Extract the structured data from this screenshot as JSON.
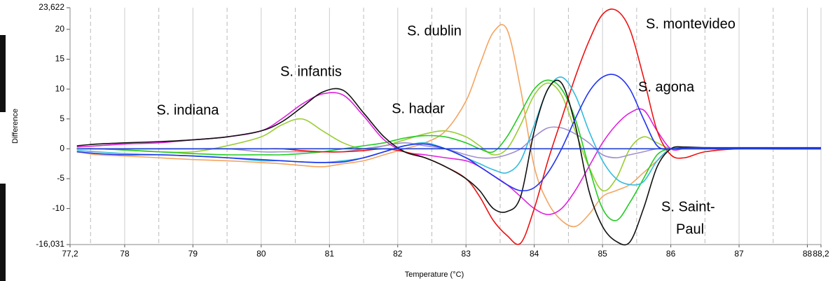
{
  "chart_data": {
    "type": "line",
    "xlabel": "Temperature (°C)",
    "ylabel": "Difference",
    "xlim": [
      77.2,
      88.2
    ],
    "ylim": [
      -16.031,
      23.622
    ],
    "xticks": [
      {
        "value": 77.2,
        "label": "77,2"
      },
      78,
      79,
      80,
      81,
      82,
      83,
      84,
      85,
      86,
      87,
      88,
      {
        "value": 88.2,
        "label": "88,2"
      }
    ],
    "yticks": [
      {
        "value": 23.622,
        "label": "23,622"
      },
      20,
      15,
      10,
      5,
      0,
      -5,
      -10,
      {
        "value": -16.031,
        "label": "-16,031"
      }
    ],
    "minor_xgrid": [
      77.5,
      78.5,
      79.5,
      80.5,
      81.5,
      82.5,
      83.5,
      84.5,
      85.5,
      86.5,
      87.5
    ],
    "grid": true,
    "annotations": [
      "S. indiana",
      "S. infantis",
      "S. dublin",
      "S. hadar",
      "S. montevideo",
      "S. agona",
      "S. Saint-",
      "Paul"
    ],
    "x": [
      77.3,
      77.6,
      78,
      78.5,
      79,
      79.5,
      80,
      80.3,
      80.6,
      80.9,
      81.2,
      81.5,
      81.8,
      82.1,
      82.4,
      82.7,
      83,
      83.2,
      83.4,
      83.6,
      83.8,
      84,
      84.2,
      84.4,
      84.6,
      84.8,
      85,
      85.2,
      85.4,
      85.6,
      85.8,
      86,
      86.2,
      86.5,
      87,
      87.5,
      88,
      88.2
    ],
    "series": [
      {
        "color": "#9acd32",
        "values": [
          0,
          0,
          -0.2,
          -0.5,
          -0.5,
          0.5,
          2,
          4,
          5,
          3,
          1,
          0,
          0.5,
          1.5,
          2.5,
          3,
          2,
          0.5,
          -1,
          0,
          4,
          9,
          11,
          9,
          3,
          -3,
          -7,
          -5,
          0,
          2,
          1,
          0,
          0,
          0,
          0,
          0,
          0,
          0
        ]
      },
      {
        "color": "#f4a460",
        "values": [
          -0.5,
          -1,
          -1.2,
          -1.5,
          -1.8,
          -2,
          -2.3,
          -2.5,
          -2.8,
          -3,
          -2.5,
          -2,
          -1,
          0,
          1,
          3,
          8,
          14,
          19.5,
          20,
          10,
          -3,
          -9,
          -12,
          -13,
          -11,
          -8,
          -7,
          -6,
          -4,
          -2,
          0,
          0.2,
          0,
          0,
          0,
          0,
          0
        ]
      },
      {
        "color": "#9f8fcf",
        "values": [
          0,
          0,
          0,
          0,
          0,
          0,
          -0.5,
          -0.5,
          -0.5,
          -0.5,
          -0.5,
          0,
          0.5,
          1,
          0.5,
          0,
          -1,
          -1.5,
          -1.5,
          -1,
          0,
          2,
          3.5,
          3.5,
          2.5,
          1,
          -1,
          -1.5,
          -1,
          -0.5,
          0,
          0,
          0,
          0,
          0,
          0,
          0,
          0
        ]
      },
      {
        "color": "#22cc22",
        "values": [
          0,
          0,
          -0.2,
          -0.5,
          -0.8,
          -1,
          -1,
          -1,
          -0.8,
          -0.5,
          0,
          0.5,
          1,
          1.8,
          2.2,
          2,
          1,
          0,
          -0.5,
          2,
          6,
          10,
          11.5,
          10,
          5,
          -3,
          -10,
          -12,
          -9,
          -5,
          -1,
          0,
          0,
          0,
          0,
          0,
          0,
          0
        ]
      },
      {
        "color": "#e020e0",
        "values": [
          0.3,
          0.5,
          0.8,
          1,
          1.5,
          2,
          3,
          5,
          7.5,
          9.2,
          9,
          5.5,
          1.5,
          -0.5,
          -1,
          -1.5,
          -2,
          -3,
          -4.5,
          -6,
          -8,
          -10,
          -11,
          -10,
          -7,
          -3,
          1,
          4,
          6,
          6.5,
          3,
          0,
          0,
          0,
          0,
          0,
          0,
          0
        ]
      },
      {
        "color": "#ee1111",
        "values": [
          0,
          0,
          0,
          0,
          0,
          0,
          0,
          0,
          -0.3,
          -0.5,
          -0.5,
          -0.3,
          0,
          -0.5,
          -1.5,
          -3,
          -5,
          -8,
          -12,
          -14.5,
          -15.8,
          -10,
          -2,
          5,
          12,
          18,
          22.5,
          23.2,
          20,
          12,
          3,
          -1,
          -1.5,
          -0.5,
          0,
          0,
          0,
          0
        ]
      },
      {
        "color": "#33bbdd",
        "values": [
          -0.3,
          -0.5,
          -0.8,
          -1,
          -1.2,
          -1.5,
          -2,
          -2,
          -2.2,
          -2.3,
          -2,
          -1.5,
          -0.5,
          0.5,
          1,
          0,
          -1.5,
          -2.5,
          -3.5,
          -4,
          -2,
          4,
          10,
          12,
          9,
          3,
          -2,
          -5,
          -6,
          -5.5,
          -2,
          0,
          0,
          0,
          0,
          0,
          0,
          0
        ]
      },
      {
        "color": "#111111",
        "values": [
          0.5,
          0.8,
          1,
          1.2,
          1.5,
          2,
          3,
          4.5,
          7,
          9.5,
          9.8,
          6,
          2,
          -0.5,
          -1.5,
          -3,
          -5,
          -7,
          -10,
          -10.5,
          -8,
          3,
          10,
          11,
          4,
          -7,
          -13,
          -15.5,
          -15.6,
          -10,
          -3,
          0,
          0.3,
          0.2,
          0.1,
          0,
          0,
          0
        ]
      },
      {
        "color": "#2233ee",
        "values": [
          -0.5,
          -0.8,
          -1,
          -1,
          -1.2,
          -1.5,
          -1.8,
          -2,
          -2.2,
          -2.3,
          -2.2,
          -1.5,
          -0.5,
          0.5,
          0.8,
          0,
          -1.5,
          -3,
          -4.5,
          -6,
          -7,
          -6.5,
          -4,
          0,
          5,
          9.5,
          12,
          12.3,
          10,
          5,
          0.5,
          0,
          0.2,
          0.2,
          0.2,
          0.2,
          0.2,
          0.2
        ]
      },
      {
        "color": "#1f3fd0",
        "values": [
          0,
          0,
          0,
          0,
          0,
          0,
          0,
          0,
          0,
          0,
          0,
          0,
          0,
          0,
          0,
          0,
          0,
          0,
          0,
          0,
          0,
          0,
          0,
          0,
          0,
          0,
          0,
          0,
          0,
          0,
          0,
          0,
          0,
          0,
          0,
          0,
          0,
          0
        ]
      }
    ]
  }
}
